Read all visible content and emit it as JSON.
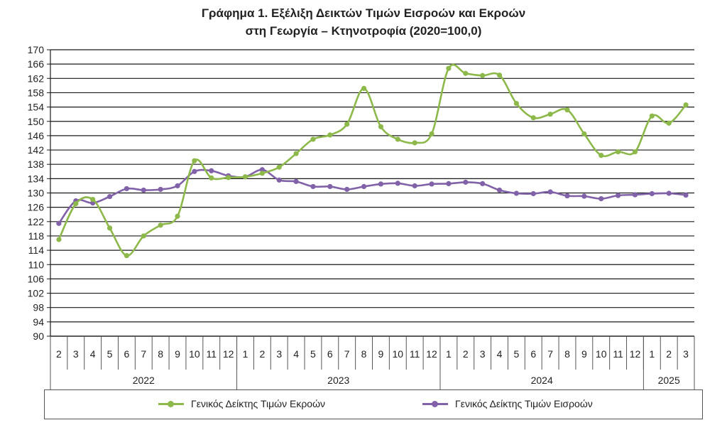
{
  "title_line1": "Γράφημα 1. Εξέλιξη Δεικτών Τιμών Εισροών και Εκροών",
  "title_line2": "στη Γεωργία – Κτηνοτροφία (2020=100,0)",
  "chart_data": {
    "type": "line",
    "ylim": [
      90,
      170
    ],
    "yticks": [
      90,
      94,
      98,
      102,
      106,
      110,
      114,
      118,
      122,
      126,
      130,
      134,
      138,
      142,
      146,
      150,
      154,
      158,
      162,
      166,
      170
    ],
    "grid": true,
    "legend_position": "bottom",
    "month_labels": [
      "2",
      "3",
      "4",
      "5",
      "6",
      "7",
      "8",
      "9",
      "10",
      "11",
      "12",
      "1",
      "2",
      "3",
      "4",
      "5",
      "6",
      "7",
      "8",
      "9",
      "10",
      "11",
      "12",
      "1",
      "2",
      "3",
      "4",
      "5",
      "6",
      "7",
      "8",
      "9",
      "10",
      "11",
      "12",
      "1",
      "2",
      "3"
    ],
    "year_groups": [
      {
        "label": "2022",
        "count": 11
      },
      {
        "label": "2023",
        "count": 12
      },
      {
        "label": "2024",
        "count": 12
      },
      {
        "label": "2025",
        "count": 3
      }
    ],
    "series": [
      {
        "name": "Γενικός Δείκτης Τιμών Εκροών",
        "color": "#8db84a",
        "values": [
          117.0,
          127.0,
          128.2,
          120.2,
          112.5,
          118.0,
          121.0,
          123.5,
          139.0,
          134.2,
          134.3,
          134.5,
          135.5,
          137.2,
          141.0,
          145.0,
          146.2,
          149.2,
          159.2,
          148.5,
          145.0,
          144.0,
          146.5,
          164.8,
          163.4,
          162.8,
          162.9,
          155.0,
          151.0,
          152.0,
          153.2,
          146.5,
          140.5,
          141.5,
          141.5,
          151.5,
          149.5,
          154.6
        ]
      },
      {
        "name": "Γενικός Δείκτης Τιμών Εισροών",
        "color": "#8161a8",
        "values": [
          121.5,
          127.8,
          127.2,
          129.0,
          131.2,
          130.8,
          131.0,
          132.0,
          136.0,
          136.2,
          134.8,
          134.5,
          136.5,
          133.6,
          133.2,
          131.8,
          131.8,
          131.0,
          131.8,
          132.5,
          132.7,
          132.0,
          132.5,
          132.6,
          133.0,
          132.6,
          130.8,
          129.9,
          129.8,
          130.3,
          129.2,
          129.1,
          128.4,
          129.3,
          129.5,
          129.8,
          129.9,
          129.4
        ]
      }
    ]
  }
}
